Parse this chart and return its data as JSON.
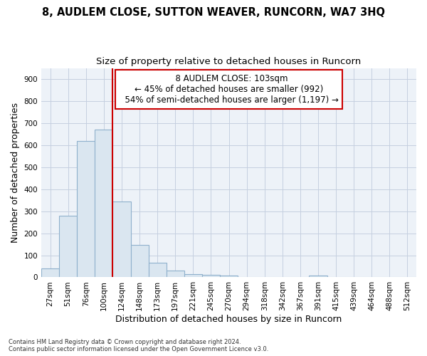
{
  "title": "8, AUDLEM CLOSE, SUTTON WEAVER, RUNCORN, WA7 3HQ",
  "subtitle": "Size of property relative to detached houses in Runcorn",
  "xlabel": "Distribution of detached houses by size in Runcorn",
  "ylabel": "Number of detached properties",
  "bar_color": "#dae6f0",
  "bar_edge_color": "#8fb0cc",
  "annotation_box_color": "#cc0000",
  "property_line_color": "#cc0000",
  "property_label": "8 AUDLEM CLOSE: 103sqm",
  "pct_smaller": 45,
  "n_smaller": 992,
  "pct_larger_semi": 54,
  "n_larger_semi": 1197,
  "footnote1": "Contains HM Land Registry data © Crown copyright and database right 2024.",
  "footnote2": "Contains public sector information licensed under the Open Government Licence v3.0.",
  "categories": [
    "27sqm",
    "51sqm",
    "76sqm",
    "100sqm",
    "124sqm",
    "148sqm",
    "173sqm",
    "197sqm",
    "221sqm",
    "245sqm",
    "270sqm",
    "294sqm",
    "318sqm",
    "342sqm",
    "367sqm",
    "391sqm",
    "415sqm",
    "439sqm",
    "464sqm",
    "488sqm",
    "512sqm"
  ],
  "values": [
    40,
    280,
    620,
    670,
    345,
    148,
    65,
    30,
    13,
    10,
    8,
    0,
    0,
    0,
    0,
    8,
    0,
    0,
    0,
    0,
    0
  ],
  "ylim": [
    0,
    950
  ],
  "yticks": [
    0,
    100,
    200,
    300,
    400,
    500,
    600,
    700,
    800,
    900
  ],
  "background_color": "#ffffff",
  "plot_bg_color": "#edf2f8",
  "grid_color": "#c5cfe0",
  "title_fontsize": 10.5,
  "subtitle_fontsize": 9.5,
  "tick_fontsize": 7.5,
  "label_fontsize": 9,
  "annot_fontsize": 8.5
}
